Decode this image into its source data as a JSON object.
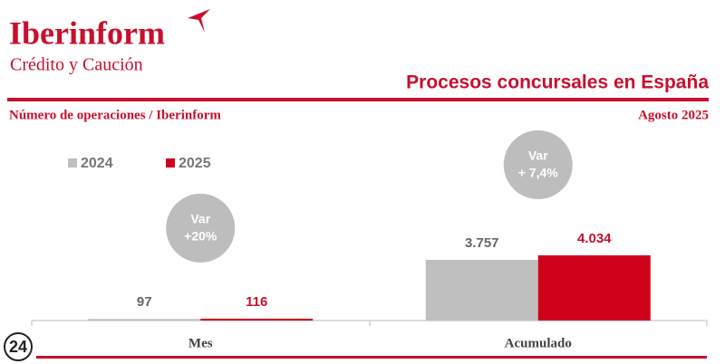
{
  "brand": {
    "name": "Iberinform",
    "tagline": "Crédito y Caución"
  },
  "watermark": "24",
  "chart_data": {
    "type": "bar",
    "title": "Procesos concursales en España",
    "subtitle": "Número de operaciones / Iberinform",
    "date": "Agosto 2025",
    "categories": [
      "Mes",
      "Acumulado"
    ],
    "series": [
      {
        "name": "2024",
        "color": "#bfbfbf",
        "values": [
          97,
          3757
        ],
        "value_labels": [
          "97",
          "3.757"
        ],
        "label_color": "#666666"
      },
      {
        "name": "2025",
        "color": "#d0021b",
        "values": [
          116,
          4034
        ],
        "value_labels": [
          "116",
          "4.034"
        ],
        "label_color": "#c8102e"
      }
    ],
    "annotations": [
      [
        "Var",
        "+20%"
      ],
      [
        "Var",
        "+ 7,4%"
      ]
    ]
  }
}
